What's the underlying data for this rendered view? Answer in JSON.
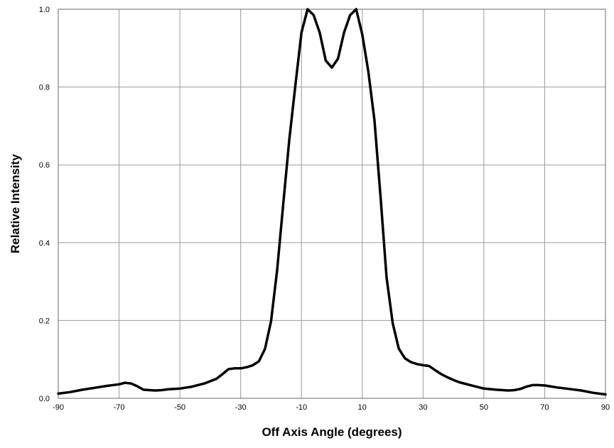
{
  "chart_data": {
    "type": "line",
    "title": "",
    "xlabel": "Off Axis Angle (degrees)",
    "ylabel": "Relative Intensity",
    "xlim": [
      -90,
      90
    ],
    "ylim": [
      0,
      1.0
    ],
    "x_ticks": [
      -90,
      -70,
      -50,
      -30,
      -10,
      10,
      30,
      50,
      70,
      90
    ],
    "y_ticks": [
      0,
      0.2,
      0.4,
      0.6,
      0.8,
      1.0
    ],
    "x_tick_labels": [
      "-90",
      "-70",
      "-50",
      "-30",
      "-10",
      "10",
      "30",
      "50",
      "70",
      "90"
    ],
    "y_tick_labels": [
      "0.0",
      "0.2",
      "0.4",
      "0.6",
      "0.8",
      "1.0"
    ],
    "grid": true,
    "legend": "none",
    "series": [
      {
        "color": "#000000",
        "points": [
          [
            -90,
            0.012
          ],
          [
            -86,
            0.016
          ],
          [
            -82,
            0.022
          ],
          [
            -78,
            0.027
          ],
          [
            -74,
            0.032
          ],
          [
            -70,
            0.036
          ],
          [
            -68,
            0.04
          ],
          [
            -66,
            0.038
          ],
          [
            -64,
            0.031
          ],
          [
            -62,
            0.022
          ],
          [
            -60,
            0.021
          ],
          [
            -58,
            0.02
          ],
          [
            -56,
            0.021
          ],
          [
            -54,
            0.023
          ],
          [
            -50,
            0.025
          ],
          [
            -46,
            0.03
          ],
          [
            -42,
            0.038
          ],
          [
            -38,
            0.05
          ],
          [
            -36,
            0.062
          ],
          [
            -34,
            0.075
          ],
          [
            -32,
            0.077
          ],
          [
            -30,
            0.077
          ],
          [
            -28,
            0.08
          ],
          [
            -26,
            0.085
          ],
          [
            -24,
            0.095
          ],
          [
            -22,
            0.127
          ],
          [
            -20,
            0.198
          ],
          [
            -18,
            0.33
          ],
          [
            -16,
            0.5
          ],
          [
            -14,
            0.665
          ],
          [
            -12,
            0.805
          ],
          [
            -10,
            0.94
          ],
          [
            -8,
            1.0
          ],
          [
            -6,
            0.985
          ],
          [
            -4,
            0.94
          ],
          [
            -2,
            0.868
          ],
          [
            0,
            0.85
          ],
          [
            2,
            0.873
          ],
          [
            4,
            0.94
          ],
          [
            6,
            0.985
          ],
          [
            8,
            1.0
          ],
          [
            10,
            0.935
          ],
          [
            12,
            0.84
          ],
          [
            14,
            0.715
          ],
          [
            16,
            0.52
          ],
          [
            18,
            0.31
          ],
          [
            20,
            0.193
          ],
          [
            22,
            0.128
          ],
          [
            24,
            0.103
          ],
          [
            26,
            0.093
          ],
          [
            28,
            0.088
          ],
          [
            30,
            0.085
          ],
          [
            32,
            0.083
          ],
          [
            34,
            0.072
          ],
          [
            36,
            0.062
          ],
          [
            38,
            0.054
          ],
          [
            40,
            0.047
          ],
          [
            42,
            0.041
          ],
          [
            46,
            0.033
          ],
          [
            50,
            0.025
          ],
          [
            54,
            0.022
          ],
          [
            58,
            0.02
          ],
          [
            60,
            0.021
          ],
          [
            62,
            0.024
          ],
          [
            64,
            0.03
          ],
          [
            66,
            0.034
          ],
          [
            68,
            0.034
          ],
          [
            70,
            0.033
          ],
          [
            74,
            0.028
          ],
          [
            78,
            0.024
          ],
          [
            82,
            0.02
          ],
          [
            86,
            0.014
          ],
          [
            90,
            0.01
          ]
        ]
      }
    ]
  }
}
